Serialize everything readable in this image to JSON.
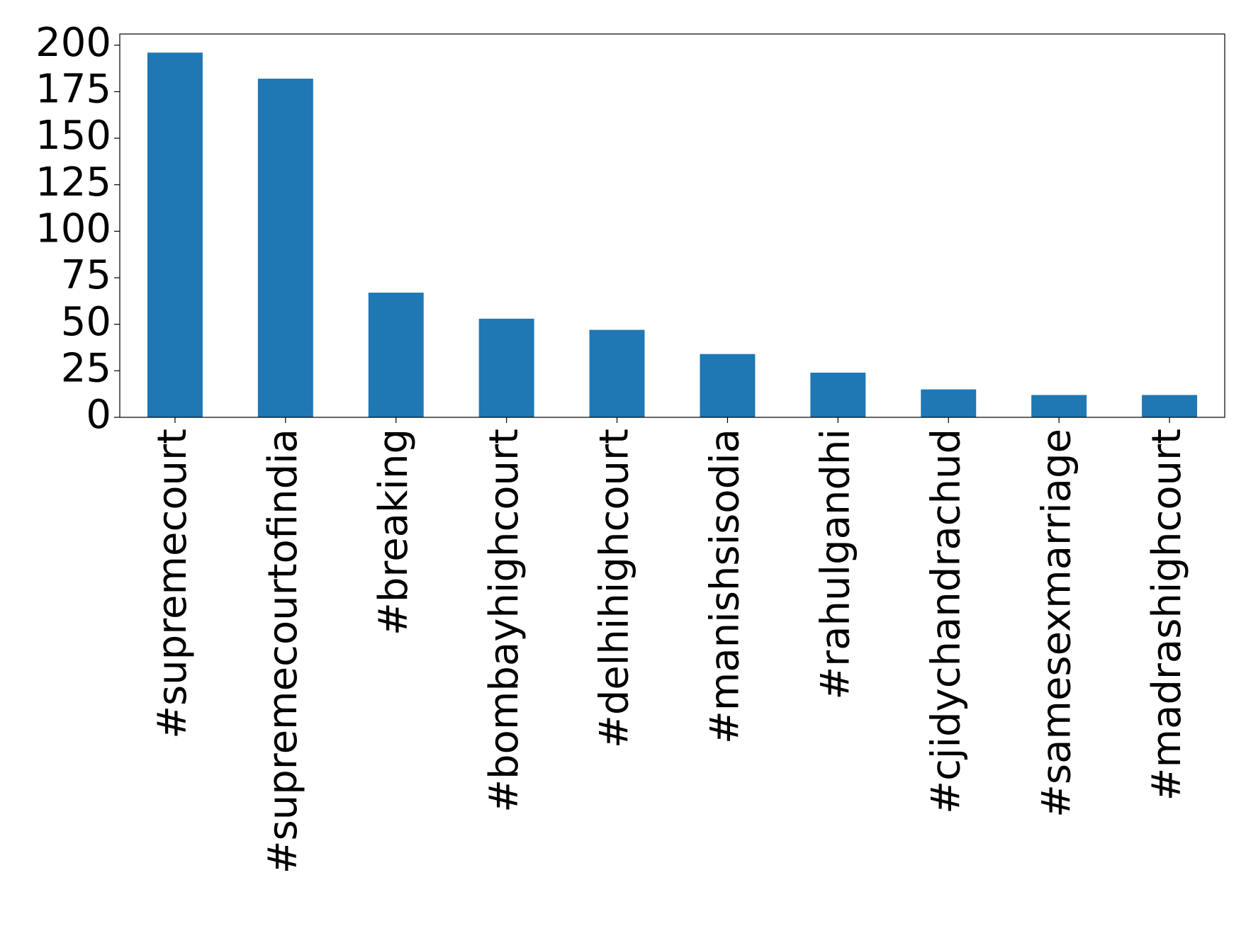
{
  "chart_data": {
    "type": "bar",
    "categories": [
      "#supremecourt",
      "#supremecourtofindia",
      "#breaking",
      "#bombayhighcourt",
      "#delhihighcourt",
      "#manishsisodia",
      "#rahulgandhi",
      "#cjidychandrachud",
      "#samesexmarriage",
      "#madrashighcourt"
    ],
    "values": [
      196,
      182,
      67,
      53,
      47,
      34,
      24,
      15,
      12,
      12
    ],
    "color": "#1f77b4",
    "ylim": [
      0,
      206
    ],
    "yticks": [
      0,
      25,
      50,
      75,
      100,
      125,
      150,
      175,
      200
    ],
    "grid": false
  }
}
